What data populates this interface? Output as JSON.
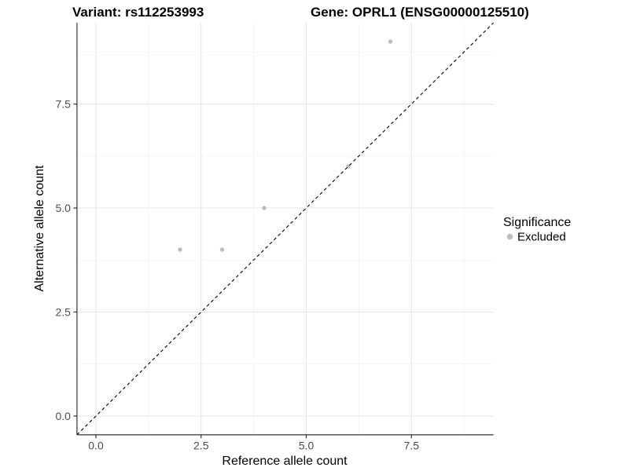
{
  "figure": {
    "background": "#FFFFFF"
  },
  "chart_data": {
    "type": "scatter",
    "titles": {
      "left": "Variant: rs112253993",
      "right": "Gene: OPRL1 (ENSG00000125510)"
    },
    "xlabel": "Reference allele count",
    "ylabel": "Alternative allele count",
    "xlim": [
      -0.45,
      9.45
    ],
    "ylim": [
      -0.45,
      9.45
    ],
    "x_ticks": [
      0,
      2.5,
      5,
      7.5
    ],
    "x_tick_labels": [
      "0.0",
      "2.5",
      "5.0",
      "7.5"
    ],
    "y_ticks": [
      0,
      2.5,
      5,
      7.5
    ],
    "y_tick_labels": [
      "0.0",
      "2.5",
      "5.0",
      "7.5"
    ],
    "x_minor_ticks": [
      1.25,
      3.75,
      6.25,
      8.75
    ],
    "y_minor_ticks": [
      1.25,
      3.75,
      6.25,
      8.75
    ],
    "grid": "on",
    "identity_line": {
      "slope": 1,
      "intercept": 0,
      "style": "dashed",
      "color": "#000000"
    },
    "series": [
      {
        "name": "Excluded",
        "color": "#BDBDBD",
        "points": [
          {
            "x": 2,
            "y": 4
          },
          {
            "x": 3,
            "y": 4
          },
          {
            "x": 4,
            "y": 5
          },
          {
            "x": 6,
            "y": 6
          },
          {
            "x": 7,
            "y": 9
          }
        ]
      }
    ],
    "legend": {
      "title": "Significance",
      "position": "right",
      "items": [
        {
          "label": "Excluded",
          "color": "#BDBDBD",
          "marker": "circle"
        }
      ]
    },
    "colors": {
      "major_grid": "#E4E4E4",
      "minor_grid": "#F2F2F2",
      "axis_line": "#333333",
      "tick_mark": "#333333",
      "tick_label": "#4D4D4D",
      "point": "#BDBDBD"
    }
  }
}
